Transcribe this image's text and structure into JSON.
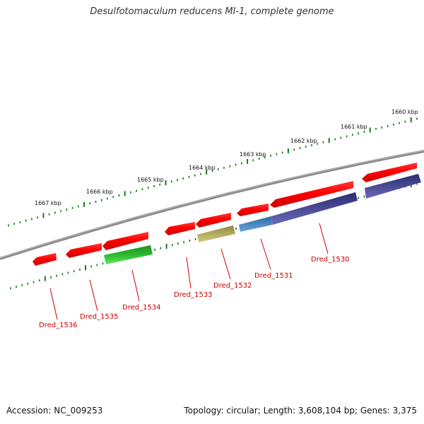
{
  "title": "Desulfotomaculum reducens MI-1, complete genome",
  "footer": {
    "accession": "Accession: NC_009253",
    "summary": "Topology: circular; Length: 3,608,104 bp; Genes: 3,375"
  },
  "scale_labels": [
    "1667 kbp",
    "1666 kbp",
    "1665 kbp",
    "1664 kbp",
    "1663 kbp",
    "1662 kbp",
    "1661 kbp",
    "1660 kbp"
  ],
  "gene_labels": [
    "Dred_1536",
    "Dred_1535",
    "Dred_1534",
    "Dred_1533",
    "Dred_1532",
    "Dred_1531",
    "Dred_1530"
  ],
  "colors": {
    "gene_forward": "#ff0000",
    "gene_reverse": "#ff0000",
    "tick_green": "#1a7a1a",
    "backbone": "#888888",
    "label_red": "#cc0000",
    "feature_green": "#33cc33",
    "feature_khaki": "#c8c070",
    "feature_blue": "#4a86c0",
    "feature_navy": "#3a3a8a"
  }
}
